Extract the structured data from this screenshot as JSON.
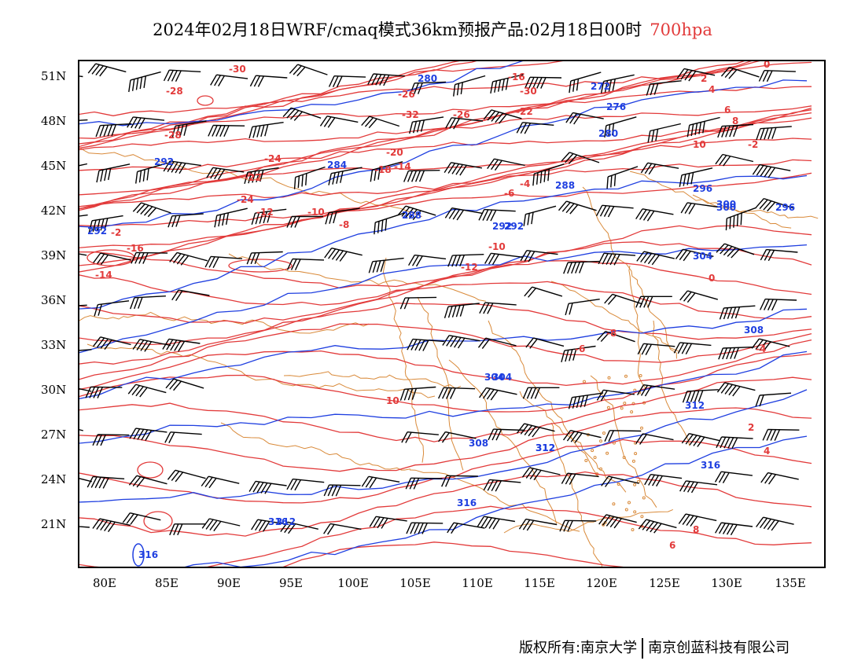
{
  "title": {
    "main": "2024年02月18日WRF/cmaq模式36km预报产品:02月18日00时",
    "level": "700hpa",
    "level_color": "#e23a3a"
  },
  "axes": {
    "lat_labels": [
      "51N",
      "48N",
      "45N",
      "42N",
      "39N",
      "36N",
      "33N",
      "30N",
      "27N",
      "24N",
      "21N"
    ],
    "lon_labels": [
      "80E",
      "85E",
      "90E",
      "95E",
      "100E",
      "105E",
      "110E",
      "115E",
      "120E",
      "125E",
      "130E",
      "135E"
    ]
  },
  "colors": {
    "temperature_contour": "#e23a3a",
    "geopotential_contour": "#1f3fe0",
    "boundary": "#d98a3a",
    "wind_barb": "#000000"
  },
  "temperature_labels": [
    "-30",
    "-28",
    "-26",
    "-32",
    "-30",
    "-26",
    "-28",
    "-24",
    "-22",
    "-20",
    "-18",
    "-22",
    "-24",
    "-14",
    "-16",
    "-12",
    "-10",
    "-8",
    "-6",
    "-4",
    "-2",
    "0",
    "2",
    "4",
    "6",
    "8",
    "10",
    "-16",
    "-14",
    "-12",
    "-10",
    "-8",
    "-6",
    "-4",
    "-2",
    "0",
    "2",
    "4",
    "6",
    "8",
    "10"
  ],
  "geopotential_labels": [
    "280",
    "272",
    "276",
    "280",
    "292",
    "292",
    "284",
    "288",
    "288",
    "292",
    "296",
    "300",
    "296",
    "292",
    "300",
    "304",
    "308",
    "304",
    "304",
    "312",
    "308",
    "312",
    "316",
    "312",
    "316",
    "312",
    "316",
    "316"
  ],
  "footer": {
    "left": "版权所有:南京大学",
    "right": "南京创蓝科技有限公司"
  }
}
